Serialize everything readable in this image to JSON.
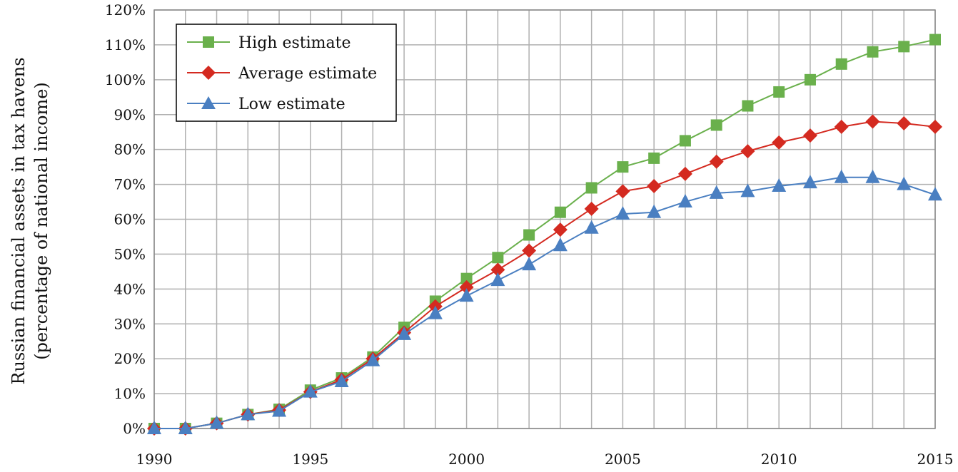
{
  "chart_data": {
    "type": "line",
    "ylabel_line1": "Russian financial assets in tax havens",
    "ylabel_line2": "(percentage of national income)",
    "x": [
      1990,
      1991,
      1992,
      1993,
      1994,
      1995,
      1996,
      1997,
      1998,
      1999,
      2000,
      2001,
      2002,
      2003,
      2004,
      2005,
      2006,
      2007,
      2008,
      2009,
      2010,
      2011,
      2012,
      2013,
      2014,
      2015
    ],
    "xlim": [
      1990,
      2015
    ],
    "ylim": [
      0,
      120
    ],
    "y_ticks": [
      "0%",
      "10%",
      "20%",
      "30%",
      "40%",
      "50%",
      "60%",
      "70%",
      "80%",
      "90%",
      "100%",
      "110%",
      "120%"
    ],
    "x_ticks": [
      "1990",
      "1995",
      "2000",
      "2005",
      "2010",
      "2015"
    ],
    "grid": true,
    "legend_position": "top-left",
    "series": [
      {
        "name": "High estimate",
        "color": "#6ab04c",
        "marker": "square",
        "values": [
          0,
          0,
          1.5,
          4,
          5.5,
          11,
          14.5,
          20.5,
          29,
          36.5,
          43,
          49,
          55.5,
          62,
          69,
          75,
          77.5,
          82.5,
          87,
          92.5,
          96.5,
          100,
          104.5,
          108,
          109.5,
          111.5
        ]
      },
      {
        "name": "Average estimate",
        "color": "#d42a20",
        "marker": "diamond",
        "values": [
          0,
          0,
          1.5,
          4,
          5.3,
          10.5,
          14,
          20,
          27.5,
          35,
          40.5,
          45.5,
          51,
          57,
          63,
          68,
          69.5,
          73,
          76.5,
          79.5,
          82,
          84,
          86.5,
          88,
          87.5,
          86.5
        ]
      },
      {
        "name": "Low estimate",
        "color": "#4a7fc1",
        "marker": "triangle",
        "values": [
          0,
          0,
          1.5,
          4,
          5,
          10.5,
          13.5,
          19.5,
          27,
          33,
          38,
          42.5,
          47,
          52.5,
          57.5,
          61.5,
          62,
          65,
          67.5,
          68,
          69.5,
          70.5,
          72,
          72,
          70,
          67
        ]
      }
    ]
  }
}
